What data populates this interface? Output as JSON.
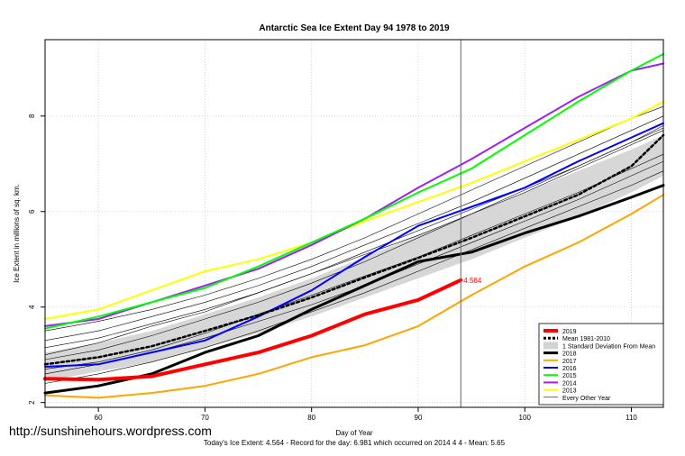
{
  "chart_data": {
    "type": "line",
    "title": "Antarctic Sea Ice Extent Day 94 1978 to 2019",
    "xlabel": "Day of Year",
    "ylabel": "Ice Extent in millions of sq. km.",
    "xlim": [
      55,
      113
    ],
    "ylim": [
      1.9,
      9.6
    ],
    "x_ticks": [
      60,
      70,
      80,
      90,
      100,
      110
    ],
    "y_ticks": [
      2,
      4,
      6,
      8
    ],
    "grid": true,
    "legend_position": "bottom-right",
    "vline_day": 94,
    "current_value_label": "4.564",
    "current_value": 4.564,
    "footer": "Today's Ice Extent: 4.564  - Record for the day: 6.981 which occurred on 2014 4 4  - Mean: 5.65",
    "colors": {
      "2019": "#ff0000",
      "mean": "#000000",
      "band": "#d3d3d3",
      "2018": "#000000",
      "2017": "#ffa500",
      "2016": "#0000ff",
      "2015": "#00ff00",
      "2014": "#a020f0",
      "2013": "#ffff00",
      "other": "#000000"
    },
    "legend": [
      {
        "label": "2019",
        "key": "2019",
        "kind": "line",
        "width": 4
      },
      {
        "label": "Mean 1981-2010",
        "key": "mean",
        "kind": "dash",
        "width": 3
      },
      {
        "label": "1 Standard Deviation From Mean",
        "key": "band",
        "kind": "band",
        "width": 8
      },
      {
        "label": "2018",
        "key": "2018",
        "kind": "line",
        "width": 3
      },
      {
        "label": "2017",
        "key": "2017",
        "kind": "line",
        "width": 2
      },
      {
        "label": "2016",
        "key": "2016",
        "kind": "line",
        "width": 2
      },
      {
        "label": "2015",
        "key": "2015",
        "kind": "line",
        "width": 2
      },
      {
        "label": "2014",
        "key": "2014",
        "kind": "line",
        "width": 2
      },
      {
        "label": "2013",
        "key": "2013",
        "kind": "line",
        "width": 2
      },
      {
        "label": "Every Other Year",
        "key": "other",
        "kind": "line",
        "width": 0.6
      }
    ],
    "x": [
      55,
      60,
      65,
      70,
      75,
      80,
      85,
      90,
      95,
      100,
      105,
      110,
      113
    ],
    "band": {
      "upper": [
        3.05,
        3.25,
        3.5,
        3.85,
        4.2,
        4.6,
        5.05,
        5.5,
        5.95,
        6.4,
        6.85,
        7.3,
        7.6
      ],
      "lower": [
        2.45,
        2.65,
        2.85,
        3.15,
        3.45,
        3.8,
        4.2,
        4.6,
        5.0,
        5.45,
        5.9,
        6.4,
        6.75
      ]
    },
    "series": [
      {
        "name": "Mean 1981-2010",
        "key": "mean",
        "x": [
          55,
          60,
          65,
          70,
          75,
          80,
          85,
          90,
          95,
          100,
          105,
          110,
          113
        ],
        "y": [
          2.8,
          2.95,
          3.18,
          3.5,
          3.83,
          4.2,
          4.62,
          5.03,
          5.45,
          5.9,
          6.35,
          6.95,
          7.6
        ]
      },
      {
        "name": "2013",
        "key": "2013",
        "x": [
          55,
          60,
          65,
          70,
          75,
          80,
          85,
          90,
          95,
          100,
          105,
          110,
          113
        ],
        "y": [
          3.75,
          3.95,
          4.35,
          4.75,
          5.0,
          5.35,
          5.8,
          6.2,
          6.6,
          7.05,
          7.5,
          7.95,
          8.3
        ]
      },
      {
        "name": "2014",
        "key": "2014",
        "x": [
          55,
          60,
          65,
          70,
          75,
          80,
          85,
          90,
          95,
          100,
          105,
          110,
          113
        ],
        "y": [
          3.6,
          3.75,
          4.1,
          4.45,
          4.8,
          5.3,
          5.85,
          6.5,
          7.1,
          7.75,
          8.4,
          8.95,
          9.1
        ]
      },
      {
        "name": "2015",
        "key": "2015",
        "x": [
          55,
          60,
          65,
          70,
          75,
          80,
          85,
          90,
          95,
          100,
          105,
          110,
          113
        ],
        "y": [
          3.55,
          3.8,
          4.1,
          4.4,
          4.85,
          5.35,
          5.85,
          6.4,
          6.9,
          7.6,
          8.3,
          8.95,
          9.3
        ]
      },
      {
        "name": "2016",
        "key": "2016",
        "x": [
          55,
          60,
          65,
          70,
          75,
          80,
          85,
          90,
          95,
          100,
          105,
          110,
          113
        ],
        "y": [
          2.75,
          2.8,
          3.05,
          3.3,
          3.8,
          4.35,
          5.05,
          5.7,
          6.1,
          6.5,
          7.05,
          7.55,
          7.85
        ]
      },
      {
        "name": "2018",
        "key": "2018",
        "x": [
          55,
          60,
          65,
          70,
          75,
          80,
          85,
          90,
          95,
          100,
          105,
          110,
          113
        ],
        "y": [
          2.2,
          2.35,
          2.6,
          3.05,
          3.4,
          3.95,
          4.45,
          4.95,
          5.15,
          5.55,
          5.9,
          6.3,
          6.55
        ]
      },
      {
        "name": "2017",
        "key": "2017",
        "x": [
          55,
          60,
          65,
          70,
          75,
          80,
          85,
          90,
          95,
          100,
          105,
          110,
          113
        ],
        "y": [
          2.15,
          2.1,
          2.2,
          2.35,
          2.6,
          2.95,
          3.2,
          3.6,
          4.25,
          4.85,
          5.35,
          5.95,
          6.35
        ]
      },
      {
        "name": "2019",
        "key": "2019",
        "x": [
          55,
          60,
          65,
          70,
          75,
          80,
          85,
          90,
          94
        ],
        "y": [
          2.5,
          2.48,
          2.55,
          2.8,
          3.05,
          3.4,
          3.85,
          4.15,
          4.564
        ]
      }
    ],
    "other_years": [
      [
        3.0,
        3.25,
        3.6,
        3.9,
        4.3,
        4.7,
        5.1,
        5.5,
        5.95,
        6.4,
        6.9,
        7.4,
        7.7
      ],
      [
        2.6,
        2.8,
        3.05,
        3.35,
        3.7,
        4.05,
        4.45,
        4.9,
        5.35,
        5.8,
        6.25,
        6.75,
        7.05
      ],
      [
        3.3,
        3.5,
        3.8,
        4.1,
        4.45,
        4.85,
        5.3,
        5.75,
        6.2,
        6.7,
        7.2,
        7.7,
        8.0
      ],
      [
        2.4,
        2.6,
        2.85,
        3.15,
        3.5,
        3.9,
        4.3,
        4.75,
        5.2,
        5.65,
        6.1,
        6.55,
        6.85
      ],
      [
        2.9,
        3.1,
        3.4,
        3.75,
        4.1,
        4.5,
        4.95,
        5.45,
        5.95,
        6.45,
        6.95,
        7.45,
        7.8
      ],
      [
        3.5,
        3.7,
        3.95,
        4.25,
        4.6,
        5.0,
        5.45,
        5.95,
        6.45,
        6.95,
        7.45,
        7.95,
        8.2
      ],
      [
        2.7,
        2.85,
        3.1,
        3.45,
        3.85,
        4.25,
        4.65,
        5.05,
        5.5,
        5.95,
        6.4,
        6.9,
        7.2
      ],
      [
        3.15,
        3.35,
        3.65,
        3.95,
        4.3,
        4.7,
        5.15,
        5.6,
        6.05,
        6.5,
        6.95,
        7.45,
        7.75
      ]
    ]
  },
  "watermark": "http://sunshinehours.wordpress.com"
}
